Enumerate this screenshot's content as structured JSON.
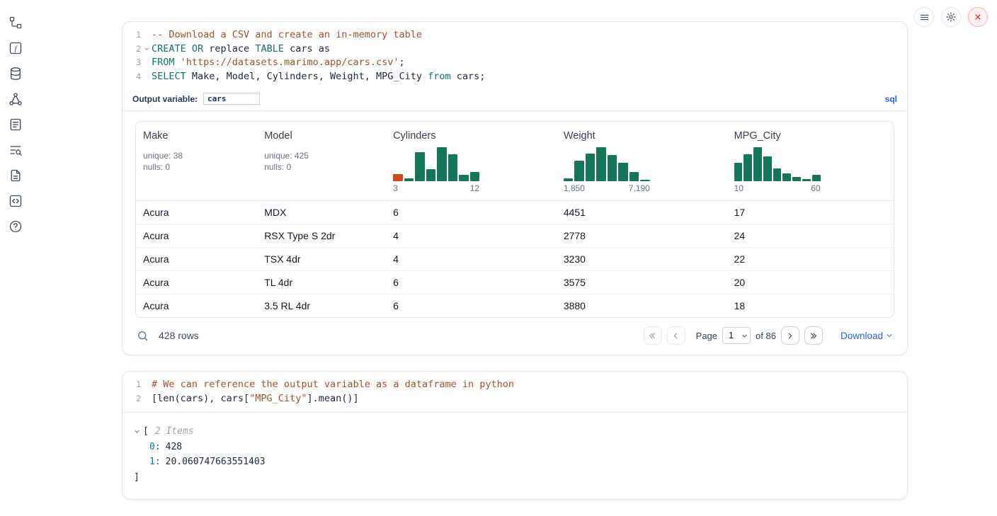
{
  "colors": {
    "hist_green": "#14775a",
    "hist_orange": "#d0491b",
    "accent_blue": "#2563eb",
    "keyword": "#0e7569",
    "comment": "#a0522d",
    "string": "#a0522d"
  },
  "sidebar": {
    "icons": [
      "file-tree-icon",
      "function-icon",
      "database-icon",
      "dependency-graph-icon",
      "notebook-icon",
      "logs-search-icon",
      "document-icon",
      "snippets-icon",
      "help-icon"
    ]
  },
  "top_actions": {
    "buttons": [
      "menu",
      "settings",
      "shutdown"
    ]
  },
  "sql_cell": {
    "line_numbers": [
      "1",
      "2",
      "3",
      "4"
    ],
    "code": {
      "l1_comment": "-- Download a CSV and create an in-memory table",
      "l2_kw1": "CREATE OR",
      "l2_plain1": " replace ",
      "l2_kw2": "TABLE",
      "l2_plain2": " cars as",
      "l3_kw": "FROM",
      "l3_plain1": " ",
      "l3_string": "'https://datasets.marimo.app/cars.csv'",
      "l3_plain2": ";",
      "l4_kw1": "SELECT",
      "l4_plain1": " Make, Model, Cylinders, Weight, MPG_City ",
      "l4_kw2": "from",
      "l4_plain2": " cars;"
    },
    "output_variable_label": "Output variable:",
    "output_variable_value": "cars",
    "language_badge": "sql"
  },
  "table": {
    "columns": [
      {
        "label": "Make",
        "unique": "unique: 38",
        "nulls": "nulls: 0"
      },
      {
        "label": "Model",
        "unique": "unique: 425",
        "nulls": "nulls: 0"
      },
      {
        "label": "Cylinders",
        "axis_min": "3",
        "axis_max": "12",
        "hist": {
          "bars": [
            {
              "h": 0.2,
              "c": "o"
            },
            {
              "h": 0.08
            },
            {
              "h": 0.85
            },
            {
              "h": 0.35
            },
            {
              "h": 1.0
            },
            {
              "h": 0.8
            },
            {
              "h": 0.18
            },
            {
              "h": 0.28
            }
          ]
        }
      },
      {
        "label": "Weight",
        "axis_min": "1,850",
        "axis_max": "7,190",
        "hist": {
          "bars": [
            {
              "h": 0.08
            },
            {
              "h": 0.6
            },
            {
              "h": 0.82
            },
            {
              "h": 1.0
            },
            {
              "h": 0.78
            },
            {
              "h": 0.55
            },
            {
              "h": 0.28
            },
            {
              "h": 0.05
            }
          ]
        }
      },
      {
        "label": "MPG_City",
        "axis_min": "10",
        "axis_max": "60",
        "hist": {
          "bars": [
            {
              "h": 0.55
            },
            {
              "h": 0.8
            },
            {
              "h": 1.0
            },
            {
              "h": 0.72
            },
            {
              "h": 0.38
            },
            {
              "h": 0.22
            },
            {
              "h": 0.12
            },
            {
              "h": 0.07
            },
            {
              "h": 0.18
            }
          ]
        }
      }
    ],
    "rows": [
      [
        "Acura",
        "MDX",
        "6",
        "4451",
        "17"
      ],
      [
        "Acura",
        "RSX Type S 2dr",
        "4",
        "2778",
        "24"
      ],
      [
        "Acura",
        "TSX 4dr",
        "4",
        "3230",
        "22"
      ],
      [
        "Acura",
        "TL 4dr",
        "6",
        "3575",
        "20"
      ],
      [
        "Acura",
        "3.5 RL 4dr",
        "6",
        "3880",
        "18"
      ]
    ],
    "footer": {
      "row_count": "428 rows",
      "page_label": "Page",
      "page_value": "1",
      "of_label": "of 86",
      "download_label": "Download"
    }
  },
  "python_cell": {
    "line_numbers": [
      "1",
      "2"
    ],
    "code": {
      "l1_comment": "# We can reference the output variable as a dataframe in python",
      "l2_plain1": "[len(cars), cars[",
      "l2_string": "\"MPG_City\"",
      "l2_plain2": "].mean()]"
    },
    "output": {
      "open_bracket": "[",
      "items_label": "2 Items",
      "entries": [
        {
          "key": "0:",
          "value": "428"
        },
        {
          "key": "1:",
          "value": "20.060747663551403"
        }
      ],
      "close_bracket": "]"
    }
  }
}
